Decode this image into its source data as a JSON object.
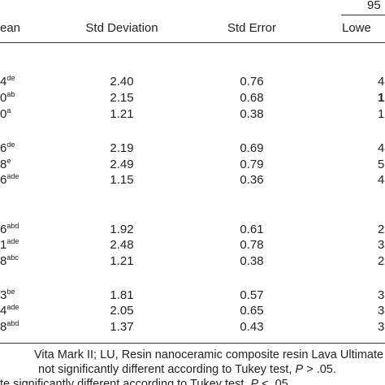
{
  "header": {
    "group_label": "95",
    "columns": [
      "ean",
      "Std Deviation",
      "Std Error",
      "Lowe"
    ]
  },
  "rows": [
    {
      "mean": "4",
      "sup": "de",
      "sd": "2.40",
      "se": "0.76",
      "lower": "4"
    },
    {
      "mean": "0",
      "sup": "ab",
      "sd": "2.15",
      "se": "0.68",
      "lower": "1"
    },
    {
      "mean": "0",
      "sup": "a",
      "sd": "1.21",
      "se": "0.38",
      "lower": "1"
    },
    {
      "mean": "6",
      "sup": "de",
      "sd": "2.19",
      "se": "0.69",
      "lower": "4"
    },
    {
      "mean": "8",
      "sup": "e",
      "sd": "2.49",
      "se": "0.79",
      "lower": "5"
    },
    {
      "mean": "6",
      "sup": "ade",
      "sd": "1.15",
      "se": "0.36",
      "lower": "4"
    },
    {
      "mean": "6",
      "sup": "abd",
      "sd": "1.92",
      "se": "0.61",
      "lower": "2"
    },
    {
      "mean": "1",
      "sup": "ade",
      "sd": "2.48",
      "se": "0.78",
      "lower": "3"
    },
    {
      "mean": "8",
      "sup": "abc",
      "sd": "1.21",
      "se": "0.38",
      "lower": "2"
    },
    {
      "mean": "3",
      "sup": "be",
      "sd": "1.81",
      "se": "0.57",
      "lower": "3"
    },
    {
      "mean": "4",
      "sup": "ade",
      "sd": "2.05",
      "se": "0.65",
      "lower": "3"
    },
    {
      "mean": "8",
      "sup": "abd",
      "sd": "1.37",
      "se": "0.43",
      "lower": "3"
    }
  ],
  "notes": [
    "Vita Mark II; LU, Resin nanoceramic composite resin Lava Ultimate",
    {
      "before": "not significantly different according to Tukey test, ",
      "italic": "P",
      "after": " > .05."
    },
    {
      "before": "te significantly different according to Tukey test, ",
      "italic": "P",
      "after": " < .05."
    }
  ]
}
